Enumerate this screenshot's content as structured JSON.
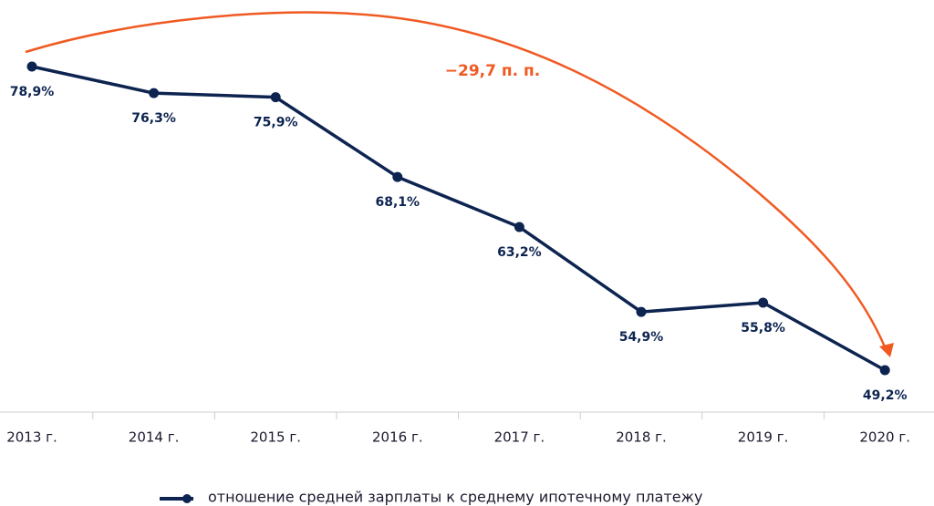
{
  "chart_data": {
    "type": "line",
    "annotation": "−29,7 п. п.",
    "categories": [
      "2013 г.",
      "2014 г.",
      "2015 г.",
      "2016 г.",
      "2017 г.",
      "2018 г.",
      "2019 г.",
      "2020 г."
    ],
    "series": [
      {
        "name": "отношение средней зарплаты к среднему ипотечному платежу",
        "color": "#0d2451",
        "values": [
          78.9,
          76.3,
          75.9,
          68.1,
          63.2,
          54.9,
          55.8,
          49.2
        ],
        "value_labels": [
          "78,9%",
          "76,3%",
          "75,9%",
          "68,1%",
          "63,2%",
          "54,9%",
          "55,8%",
          "49,2%"
        ]
      }
    ],
    "annotation_color": "#f05a22",
    "legend": "bottom"
  }
}
